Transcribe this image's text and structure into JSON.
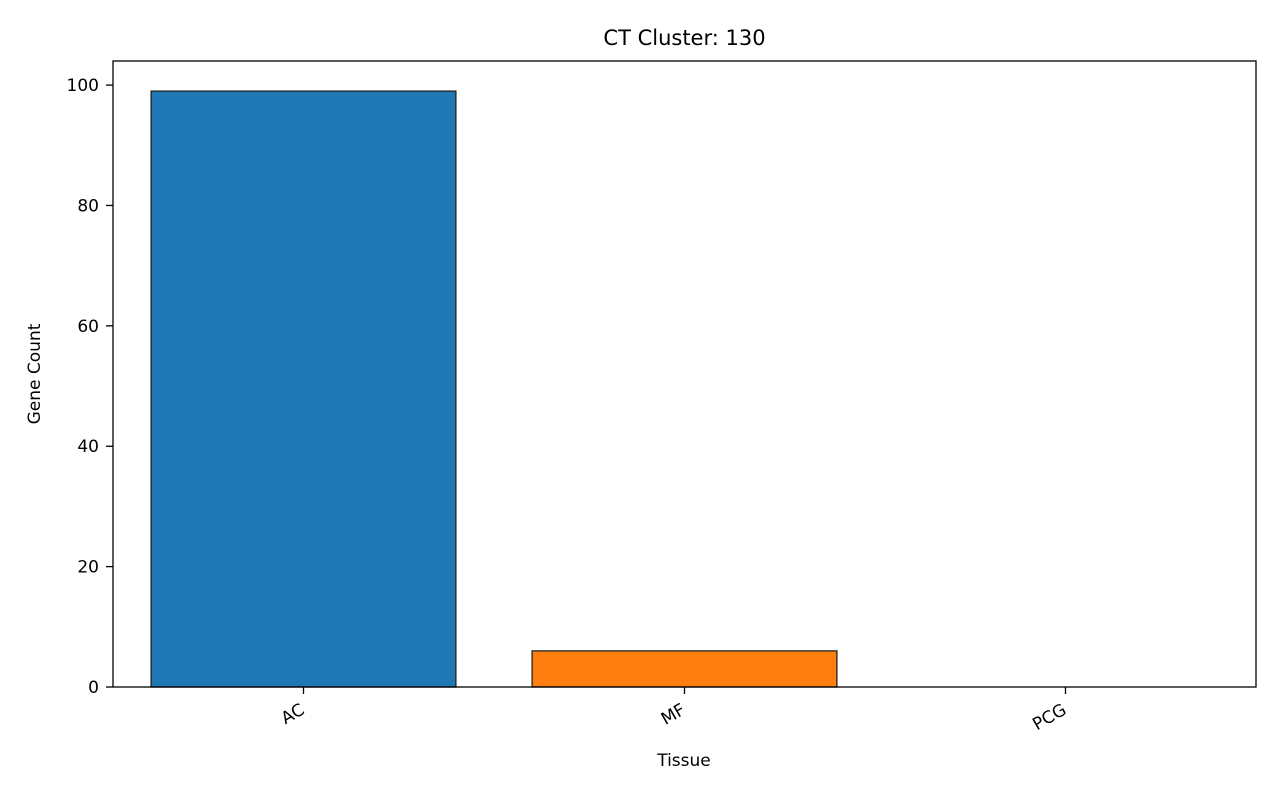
{
  "chart_data": {
    "type": "bar",
    "title": "CT Cluster: 130",
    "xlabel": "Tissue",
    "ylabel": "Gene Count",
    "categories": [
      "AC",
      "MF",
      "PCG"
    ],
    "values": [
      99,
      6,
      0
    ],
    "colors": [
      "#1f77b4",
      "#ff7f0e",
      "#2ca02c"
    ],
    "edge_color": "#222222",
    "ylim": [
      0,
      104
    ],
    "yticks": [
      0,
      20,
      40,
      60,
      80,
      100
    ],
    "grid": false,
    "legend": "none"
  }
}
